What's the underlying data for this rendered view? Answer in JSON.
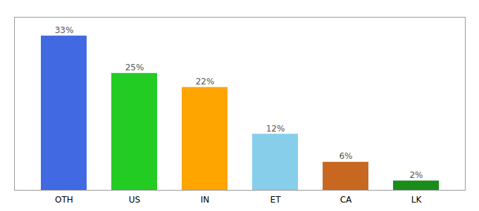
{
  "chart_data": {
    "type": "bar",
    "categories": [
      "OTH",
      "US",
      "IN",
      "ET",
      "CA",
      "LK"
    ],
    "values": [
      33,
      25,
      22,
      12,
      6,
      2
    ],
    "value_labels": [
      "33%",
      "25%",
      "22%",
      "12%",
      "6%",
      "2%"
    ],
    "colors": [
      "#4169e1",
      "#22cc22",
      "#ffa500",
      "#87ceeb",
      "#c86820",
      "#1a8c1a"
    ],
    "ylim": [
      0,
      37
    ],
    "data_labels": true,
    "tick_labels": "x",
    "grid": false
  }
}
